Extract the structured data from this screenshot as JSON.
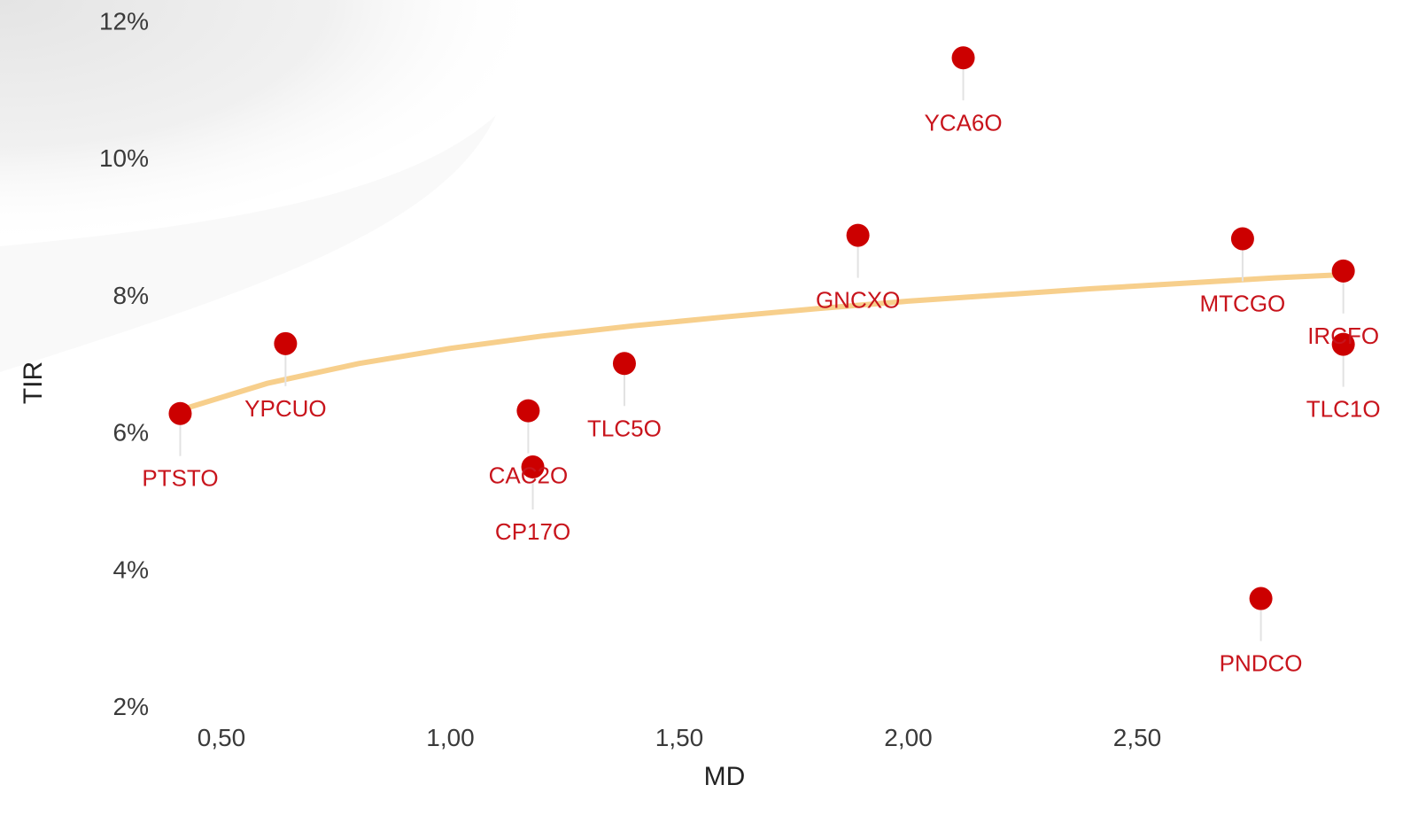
{
  "chart_data": {
    "type": "scatter",
    "xlabel": "MD",
    "ylabel": "TIR",
    "xlim": [
      0.37,
      2.97
    ],
    "ylim": [
      0.02,
      0.12
    ],
    "x_ticks": [
      {
        "value": 0.5,
        "label": "0,50"
      },
      {
        "value": 1.0,
        "label": "1,00"
      },
      {
        "value": 1.5,
        "label": "1,50"
      },
      {
        "value": 2.0,
        "label": "2,00"
      },
      {
        "value": 2.5,
        "label": "2,50"
      }
    ],
    "y_ticks": [
      {
        "value": 0.02,
        "label": "2%"
      },
      {
        "value": 0.04,
        "label": "4%"
      },
      {
        "value": 0.06,
        "label": "6%"
      },
      {
        "value": 0.08,
        "label": "8%"
      },
      {
        "value": 0.1,
        "label": "10%"
      },
      {
        "value": 0.12,
        "label": "12%"
      }
    ],
    "points": [
      {
        "label": "PTSTO",
        "x": 0.41,
        "y": 0.0627,
        "label_pos": "below"
      },
      {
        "label": "YPCUO",
        "x": 0.64,
        "y": 0.0729,
        "label_pos": "below"
      },
      {
        "label": "CAC2O",
        "x": 1.17,
        "y": 0.0631,
        "label_pos": "below"
      },
      {
        "label": "CP17O",
        "x": 1.18,
        "y": 0.0549,
        "label_pos": "below"
      },
      {
        "label": "TLC5O",
        "x": 1.38,
        "y": 0.07,
        "label_pos": "below"
      },
      {
        "label": "GNCXO",
        "x": 1.89,
        "y": 0.0887,
        "label_pos": "below"
      },
      {
        "label": "YCA6O",
        "x": 2.12,
        "y": 0.1146,
        "label_pos": "below"
      },
      {
        "label": "MTCGO",
        "x": 2.73,
        "y": 0.0882,
        "label_pos": "below"
      },
      {
        "label": "PNDCO",
        "x": 2.77,
        "y": 0.0357,
        "label_pos": "below"
      },
      {
        "label": "IRCFO",
        "x": 2.95,
        "y": 0.0835,
        "label_pos": "below"
      },
      {
        "label": "TLC1O",
        "x": 2.95,
        "y": 0.0728,
        "label_pos": "below"
      }
    ],
    "trendline": {
      "type": "logarithmic",
      "x": [
        0.4,
        0.6,
        0.8,
        1.0,
        1.2,
        1.4,
        1.6,
        1.8,
        2.0,
        2.2,
        2.4,
        2.6,
        2.8,
        2.96
      ],
      "y": [
        0.063,
        0.0671,
        0.07,
        0.0722,
        0.074,
        0.0755,
        0.0768,
        0.078,
        0.0791,
        0.08,
        0.0809,
        0.0817,
        0.0825,
        0.083
      ]
    },
    "grid": false,
    "legend": "none"
  },
  "colors": {
    "point": "#cc0000",
    "label": "#c8141c",
    "trendline": "#f7cf8c",
    "leader": "#e2e2e2",
    "axis_text": "#3a3a3a"
  }
}
